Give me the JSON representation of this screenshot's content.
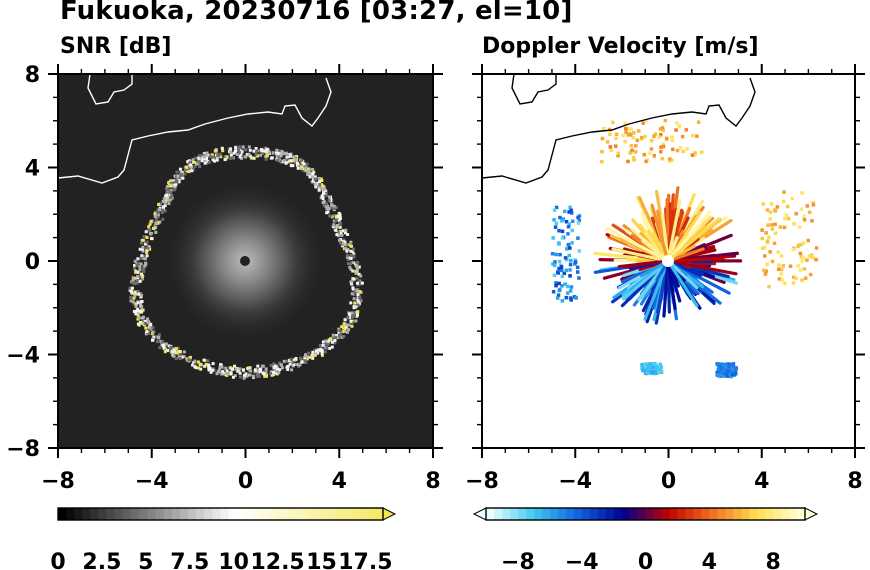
{
  "title": "Fukuoka, 20230716 [03:27, el=10]",
  "chart_data": [
    {
      "type": "heatmap",
      "title": "SNR [dB]",
      "xlim": [
        -8,
        8
      ],
      "ylim": [
        -8,
        8
      ],
      "xticks": [
        "−8",
        "−4",
        "0",
        "4",
        "8"
      ],
      "yticks": [
        "8",
        "4",
        "0",
        "−4",
        "−8"
      ],
      "colorbar": {
        "min": 0,
        "max": 18.5,
        "extend": "max",
        "tick_labels": [
          "0",
          "2.5",
          "5",
          "7.5",
          "10",
          "12.5",
          "15",
          "17.5"
        ],
        "colors": [
          "#000000",
          "#ffffff",
          "#f2e64b"
        ]
      }
    },
    {
      "type": "heatmap",
      "title": "Doppler Velocity [m/s]",
      "xlim": [
        -8,
        8
      ],
      "ylim": [
        -8,
        8
      ],
      "xticks": [
        "−8",
        "−4",
        "0",
        "4",
        "8"
      ],
      "yticks": [
        "8",
        "4",
        "0",
        "−4",
        "−8"
      ],
      "colorbar": {
        "min": -10,
        "max": 10,
        "extend": "both",
        "tick_labels": [
          "−8",
          "−4",
          "0",
          "4",
          "8"
        ],
        "colors": [
          "#e8ffff",
          "#40c8f0",
          "#1060e0",
          "#000090",
          "#c00000",
          "#f07020",
          "#ffe050",
          "#ffffd8"
        ]
      }
    }
  ]
}
